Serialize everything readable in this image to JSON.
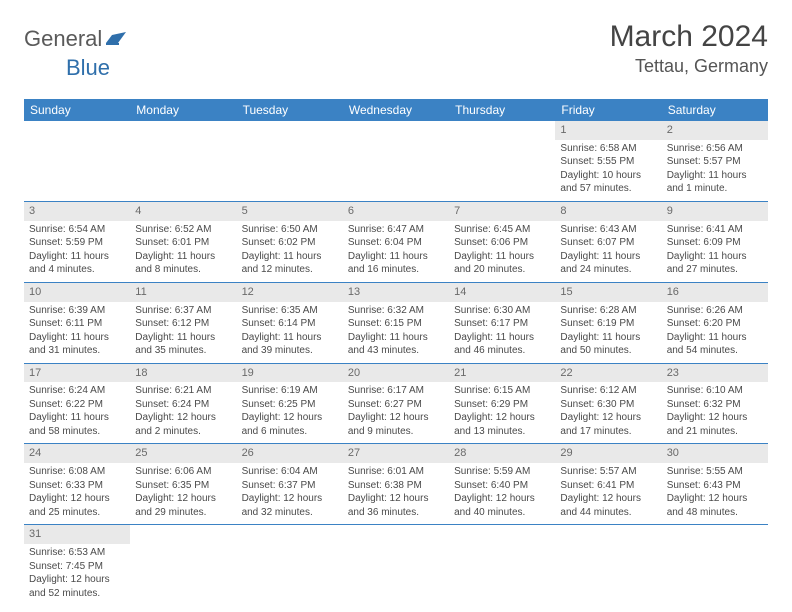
{
  "logo": {
    "general": "General",
    "blue": "Blue"
  },
  "title": "March 2024",
  "location": "Tettau, Germany",
  "colors": {
    "header_bg": "#3b82c4",
    "header_text": "#ffffff",
    "day_stripe_bg": "#e9e9e9",
    "row_border": "#3b82c4",
    "body_text": "#4a4a4a",
    "title_text": "#444444",
    "location_text": "#555555",
    "logo_gray": "#5a5a5a",
    "logo_blue": "#2f6fab"
  },
  "typography": {
    "title_fontsize": 30,
    "location_fontsize": 18,
    "weekday_fontsize": 12,
    "cell_fontsize": 10,
    "daynum_fontsize": 11
  },
  "weekdays": [
    "Sunday",
    "Monday",
    "Tuesday",
    "Wednesday",
    "Thursday",
    "Friday",
    "Saturday"
  ],
  "weeks": [
    [
      null,
      null,
      null,
      null,
      null,
      {
        "n": "1",
        "sr": "Sunrise: 6:58 AM",
        "ss": "Sunset: 5:55 PM",
        "dl": "Daylight: 10 hours and 57 minutes."
      },
      {
        "n": "2",
        "sr": "Sunrise: 6:56 AM",
        "ss": "Sunset: 5:57 PM",
        "dl": "Daylight: 11 hours and 1 minute."
      }
    ],
    [
      {
        "n": "3",
        "sr": "Sunrise: 6:54 AM",
        "ss": "Sunset: 5:59 PM",
        "dl": "Daylight: 11 hours and 4 minutes."
      },
      {
        "n": "4",
        "sr": "Sunrise: 6:52 AM",
        "ss": "Sunset: 6:01 PM",
        "dl": "Daylight: 11 hours and 8 minutes."
      },
      {
        "n": "5",
        "sr": "Sunrise: 6:50 AM",
        "ss": "Sunset: 6:02 PM",
        "dl": "Daylight: 11 hours and 12 minutes."
      },
      {
        "n": "6",
        "sr": "Sunrise: 6:47 AM",
        "ss": "Sunset: 6:04 PM",
        "dl": "Daylight: 11 hours and 16 minutes."
      },
      {
        "n": "7",
        "sr": "Sunrise: 6:45 AM",
        "ss": "Sunset: 6:06 PM",
        "dl": "Daylight: 11 hours and 20 minutes."
      },
      {
        "n": "8",
        "sr": "Sunrise: 6:43 AM",
        "ss": "Sunset: 6:07 PM",
        "dl": "Daylight: 11 hours and 24 minutes."
      },
      {
        "n": "9",
        "sr": "Sunrise: 6:41 AM",
        "ss": "Sunset: 6:09 PM",
        "dl": "Daylight: 11 hours and 27 minutes."
      }
    ],
    [
      {
        "n": "10",
        "sr": "Sunrise: 6:39 AM",
        "ss": "Sunset: 6:11 PM",
        "dl": "Daylight: 11 hours and 31 minutes."
      },
      {
        "n": "11",
        "sr": "Sunrise: 6:37 AM",
        "ss": "Sunset: 6:12 PM",
        "dl": "Daylight: 11 hours and 35 minutes."
      },
      {
        "n": "12",
        "sr": "Sunrise: 6:35 AM",
        "ss": "Sunset: 6:14 PM",
        "dl": "Daylight: 11 hours and 39 minutes."
      },
      {
        "n": "13",
        "sr": "Sunrise: 6:32 AM",
        "ss": "Sunset: 6:15 PM",
        "dl": "Daylight: 11 hours and 43 minutes."
      },
      {
        "n": "14",
        "sr": "Sunrise: 6:30 AM",
        "ss": "Sunset: 6:17 PM",
        "dl": "Daylight: 11 hours and 46 minutes."
      },
      {
        "n": "15",
        "sr": "Sunrise: 6:28 AM",
        "ss": "Sunset: 6:19 PM",
        "dl": "Daylight: 11 hours and 50 minutes."
      },
      {
        "n": "16",
        "sr": "Sunrise: 6:26 AM",
        "ss": "Sunset: 6:20 PM",
        "dl": "Daylight: 11 hours and 54 minutes."
      }
    ],
    [
      {
        "n": "17",
        "sr": "Sunrise: 6:24 AM",
        "ss": "Sunset: 6:22 PM",
        "dl": "Daylight: 11 hours and 58 minutes."
      },
      {
        "n": "18",
        "sr": "Sunrise: 6:21 AM",
        "ss": "Sunset: 6:24 PM",
        "dl": "Daylight: 12 hours and 2 minutes."
      },
      {
        "n": "19",
        "sr": "Sunrise: 6:19 AM",
        "ss": "Sunset: 6:25 PM",
        "dl": "Daylight: 12 hours and 6 minutes."
      },
      {
        "n": "20",
        "sr": "Sunrise: 6:17 AM",
        "ss": "Sunset: 6:27 PM",
        "dl": "Daylight: 12 hours and 9 minutes."
      },
      {
        "n": "21",
        "sr": "Sunrise: 6:15 AM",
        "ss": "Sunset: 6:29 PM",
        "dl": "Daylight: 12 hours and 13 minutes."
      },
      {
        "n": "22",
        "sr": "Sunrise: 6:12 AM",
        "ss": "Sunset: 6:30 PM",
        "dl": "Daylight: 12 hours and 17 minutes."
      },
      {
        "n": "23",
        "sr": "Sunrise: 6:10 AM",
        "ss": "Sunset: 6:32 PM",
        "dl": "Daylight: 12 hours and 21 minutes."
      }
    ],
    [
      {
        "n": "24",
        "sr": "Sunrise: 6:08 AM",
        "ss": "Sunset: 6:33 PM",
        "dl": "Daylight: 12 hours and 25 minutes."
      },
      {
        "n": "25",
        "sr": "Sunrise: 6:06 AM",
        "ss": "Sunset: 6:35 PM",
        "dl": "Daylight: 12 hours and 29 minutes."
      },
      {
        "n": "26",
        "sr": "Sunrise: 6:04 AM",
        "ss": "Sunset: 6:37 PM",
        "dl": "Daylight: 12 hours and 32 minutes."
      },
      {
        "n": "27",
        "sr": "Sunrise: 6:01 AM",
        "ss": "Sunset: 6:38 PM",
        "dl": "Daylight: 12 hours and 36 minutes."
      },
      {
        "n": "28",
        "sr": "Sunrise: 5:59 AM",
        "ss": "Sunset: 6:40 PM",
        "dl": "Daylight: 12 hours and 40 minutes."
      },
      {
        "n": "29",
        "sr": "Sunrise: 5:57 AM",
        "ss": "Sunset: 6:41 PM",
        "dl": "Daylight: 12 hours and 44 minutes."
      },
      {
        "n": "30",
        "sr": "Sunrise: 5:55 AM",
        "ss": "Sunset: 6:43 PM",
        "dl": "Daylight: 12 hours and 48 minutes."
      }
    ],
    [
      {
        "n": "31",
        "sr": "Sunrise: 6:53 AM",
        "ss": "Sunset: 7:45 PM",
        "dl": "Daylight: 12 hours and 52 minutes."
      },
      null,
      null,
      null,
      null,
      null,
      null
    ]
  ]
}
